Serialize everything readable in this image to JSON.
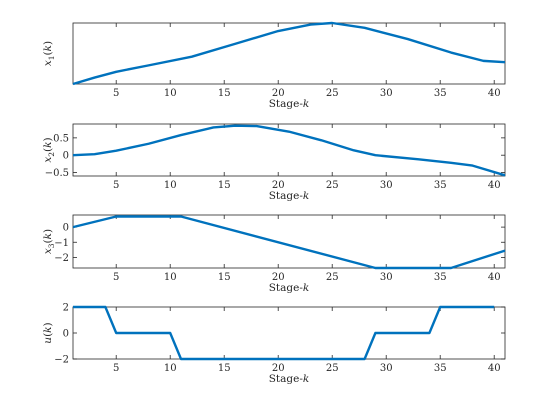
{
  "chart_data": [
    {
      "type": "line",
      "xlabel": "Stage-k",
      "ylabel": "x1(k)",
      "xlim": [
        1,
        41
      ],
      "ylim": [
        0,
        1.9
      ],
      "xticks": [
        5,
        10,
        15,
        20,
        25,
        30,
        35,
        40
      ],
      "yticks": [],
      "x": [
        1,
        3,
        5,
        8,
        12,
        16,
        20,
        23,
        25,
        28,
        32,
        36,
        39,
        41
      ],
      "series": [
        {
          "values": [
            0,
            0.2,
            0.38,
            0.58,
            0.85,
            1.25,
            1.65,
            1.85,
            1.9,
            1.75,
            1.4,
            0.98,
            0.72,
            0.68
          ]
        }
      ],
      "color": "#0072BD",
      "grid": false
    },
    {
      "type": "line",
      "xlabel": "Stage-k",
      "ylabel": "x2(k)",
      "xlim": [
        1,
        41
      ],
      "ylim": [
        -0.6,
        0.9
      ],
      "xticks": [
        5,
        10,
        15,
        20,
        25,
        30,
        35,
        40
      ],
      "yticks": [
        -0.5,
        0,
        0.5
      ],
      "x": [
        1,
        3,
        5,
        8,
        11,
        14,
        16,
        18,
        21,
        24,
        27,
        29,
        33,
        36,
        38,
        41
      ],
      "series": [
        {
          "values": [
            0,
            0.03,
            0.13,
            0.33,
            0.58,
            0.8,
            0.85,
            0.84,
            0.68,
            0.43,
            0.14,
            0,
            -0.12,
            -0.22,
            -0.3,
            -0.58
          ]
        }
      ],
      "color": "#0072BD",
      "grid": false
    },
    {
      "type": "line",
      "xlabel": "Stage-k",
      "ylabel": "x3(k)",
      "xlim": [
        1,
        41
      ],
      "ylim": [
        -2.7,
        0.8
      ],
      "xticks": [
        5,
        10,
        15,
        20,
        25,
        30,
        35,
        40
      ],
      "yticks": [
        -2,
        -1,
        0
      ],
      "x": [
        1,
        5,
        11,
        29,
        36,
        41
      ],
      "series": [
        {
          "values": [
            0,
            0.7,
            0.7,
            -2.7,
            -2.7,
            -1.55
          ]
        }
      ],
      "color": "#0072BD",
      "grid": false
    },
    {
      "type": "line",
      "xlabel": "Stage-k",
      "ylabel": "u(k)",
      "xlim": [
        1,
        41
      ],
      "ylim": [
        -2,
        2
      ],
      "xticks": [
        5,
        10,
        15,
        20,
        25,
        30,
        35,
        40
      ],
      "yticks": [
        -2,
        0,
        2
      ],
      "x": [
        1,
        4,
        5,
        10,
        11,
        28,
        29,
        34,
        35,
        40
      ],
      "series": [
        {
          "values": [
            2,
            2,
            0,
            0,
            -2,
            -2,
            0,
            0,
            2,
            2
          ]
        }
      ],
      "color": "#0072BD",
      "grid": false
    }
  ]
}
